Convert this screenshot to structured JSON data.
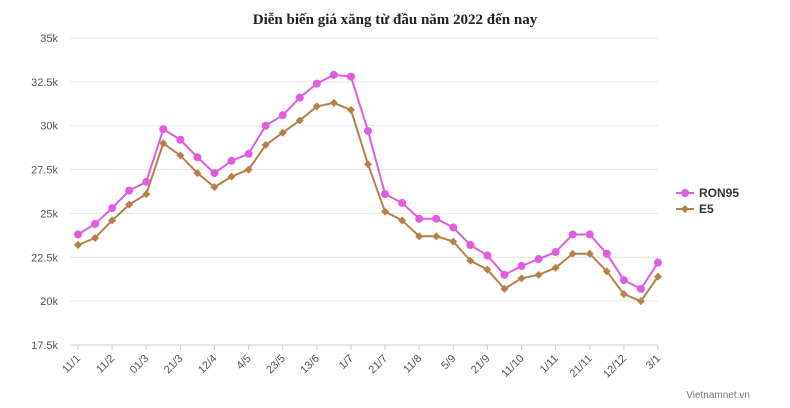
{
  "chart_data": {
    "type": "line",
    "title": "Diễn biến giá xăng từ đầu năm 2022 đến nay",
    "ylim": [
      17500,
      35000
    ],
    "yticks": [
      17500,
      20000,
      22500,
      25000,
      27500,
      30000,
      32500,
      35000
    ],
    "ytick_labels": [
      "17.5k",
      "20k",
      "22.5k",
      "25k",
      "27.5k",
      "30k",
      "32.5k",
      "35k"
    ],
    "grid": "horizontal",
    "legend_position": "right",
    "x_tick_labels": [
      {
        "index": 0,
        "label": "11/1"
      },
      {
        "index": 2,
        "label": "11/2"
      },
      {
        "index": 4,
        "label": "01/3"
      },
      {
        "index": 6,
        "label": "21/3"
      },
      {
        "index": 8,
        "label": "12/4"
      },
      {
        "index": 10,
        "label": "4/5"
      },
      {
        "index": 12,
        "label": "23/5"
      },
      {
        "index": 14,
        "label": "13/6"
      },
      {
        "index": 16,
        "label": "1/7"
      },
      {
        "index": 18,
        "label": "21/7"
      },
      {
        "index": 20,
        "label": "11/8"
      },
      {
        "index": 22,
        "label": "5/9"
      },
      {
        "index": 24,
        "label": "21/9"
      },
      {
        "index": 26,
        "label": "11/10"
      },
      {
        "index": 28,
        "label": "1/11"
      },
      {
        "index": 30,
        "label": "21/11"
      },
      {
        "index": 32,
        "label": "12/12"
      },
      {
        "index": 34,
        "label": "3/1"
      }
    ],
    "series": [
      {
        "name": "RON95",
        "color": "#e05ce0",
        "marker": "circle",
        "values": [
          23800,
          24400,
          25300,
          26300,
          26800,
          29800,
          29200,
          28200,
          27300,
          28000,
          28400,
          30000,
          30600,
          31600,
          32400,
          32900,
          32800,
          29700,
          26100,
          25600,
          24700,
          24700,
          24200,
          23200,
          22600,
          21500,
          22000,
          22400,
          22800,
          23800,
          23800,
          22700,
          21200,
          20700,
          22200
        ]
      },
      {
        "name": "E5",
        "color": "#b5804a",
        "marker": "diamond",
        "values": [
          23200,
          23600,
          24600,
          25500,
          26100,
          29000,
          28300,
          27300,
          26500,
          27100,
          27500,
          28900,
          29600,
          30300,
          31100,
          31300,
          30900,
          27800,
          25100,
          24600,
          23700,
          23700,
          23400,
          22300,
          21800,
          20700,
          21300,
          21500,
          21900,
          22700,
          22700,
          21700,
          20400,
          20000,
          21400
        ]
      }
    ]
  },
  "credit": "Vietnamnet.vn"
}
